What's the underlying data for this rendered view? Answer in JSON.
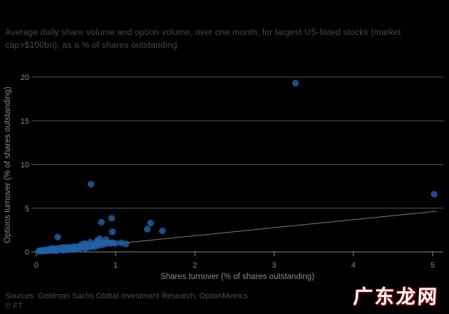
{
  "page": {
    "background": "#000000"
  },
  "title": {
    "text": "Average daily share volume and option volume, over one month, for largest US-listed stocks (market cap>$100bn), as a % of shares outstanding"
  },
  "footer": {
    "sources": "Sources: Goldman Sachs Global Investment Research; OptionMetrics",
    "copyright": "© FT"
  },
  "watermark": {
    "text": "广东龙网",
    "text_color": "#ffffff",
    "outline_color": "#7d1212"
  },
  "chart_data": {
    "type": "scatter",
    "title": "Average daily share volume and option volume, over one month, for largest US-listed stocks (market cap>$100bn), as a % of shares outstanding",
    "xlabel": "Shares turnover (% of shares outstanding)",
    "ylabel": "Options turnover (% of shares outstanding)",
    "xlim": [
      0,
      5
    ],
    "ylim": [
      0,
      20
    ],
    "xticks": [
      0,
      1,
      2,
      3,
      4,
      5
    ],
    "yticks": [
      0,
      5,
      10,
      15,
      20
    ],
    "grid": "horizontal-only",
    "legend_position": "none",
    "point_color": "#2263a8",
    "point_opacity": 0.8,
    "grid_color": "#57544c",
    "axis_color": "#8e897e",
    "trendline": {
      "from": [
        0.0,
        0.02
      ],
      "to": [
        5.05,
        4.65
      ],
      "color": "#847d6f"
    },
    "points": [
      [
        3.27,
        19.3
      ],
      [
        5.02,
        6.6
      ],
      [
        0.69,
        7.75
      ],
      [
        0.95,
        3.85
      ],
      [
        0.82,
        3.4
      ],
      [
        1.44,
        3.3
      ],
      [
        1.4,
        2.6
      ],
      [
        1.59,
        2.4
      ],
      [
        0.96,
        2.3
      ],
      [
        0.27,
        1.7
      ],
      [
        0.8,
        1.5
      ],
      [
        0.77,
        1.3
      ],
      [
        0.88,
        1.4
      ],
      [
        1.07,
        1.05
      ],
      [
        1.13,
        0.9
      ],
      [
        0.03,
        0.1
      ],
      [
        0.05,
        0.16
      ],
      [
        0.06,
        0.08
      ],
      [
        0.08,
        0.18
      ],
      [
        0.1,
        0.12
      ],
      [
        0.11,
        0.24
      ],
      [
        0.13,
        0.1
      ],
      [
        0.15,
        0.2
      ],
      [
        0.16,
        0.32
      ],
      [
        0.18,
        0.14
      ],
      [
        0.19,
        0.26
      ],
      [
        0.21,
        0.42
      ],
      [
        0.22,
        0.18
      ],
      [
        0.24,
        0.3
      ],
      [
        0.25,
        0.13
      ],
      [
        0.26,
        0.36
      ],
      [
        0.28,
        0.22
      ],
      [
        0.3,
        0.46
      ],
      [
        0.31,
        0.28
      ],
      [
        0.33,
        0.38
      ],
      [
        0.34,
        0.18
      ],
      [
        0.35,
        0.52
      ],
      [
        0.37,
        0.3
      ],
      [
        0.38,
        0.44
      ],
      [
        0.4,
        0.24
      ],
      [
        0.41,
        0.56
      ],
      [
        0.43,
        0.36
      ],
      [
        0.44,
        0.48
      ],
      [
        0.46,
        0.28
      ],
      [
        0.47,
        0.62
      ],
      [
        0.49,
        0.42
      ],
      [
        0.51,
        0.54
      ],
      [
        0.52,
        0.34
      ],
      [
        0.54,
        0.66
      ],
      [
        0.56,
        0.46
      ],
      [
        0.57,
        0.82
      ],
      [
        0.59,
        0.56
      ],
      [
        0.61,
        0.96
      ],
      [
        0.62,
        0.42
      ],
      [
        0.64,
        0.72
      ],
      [
        0.66,
        0.54
      ],
      [
        0.68,
        1.1
      ],
      [
        0.7,
        0.64
      ],
      [
        0.72,
        0.86
      ],
      [
        0.73,
        0.56
      ],
      [
        0.75,
        0.96
      ],
      [
        0.78,
        0.72
      ],
      [
        0.8,
        1.02
      ],
      [
        0.83,
        0.82
      ],
      [
        0.85,
        1.06
      ],
      [
        0.87,
        0.92
      ],
      [
        0.9,
        1.1
      ],
      [
        0.93,
        0.96
      ],
      [
        0.96,
        1.06
      ],
      [
        1.0,
        0.98
      ]
    ]
  }
}
